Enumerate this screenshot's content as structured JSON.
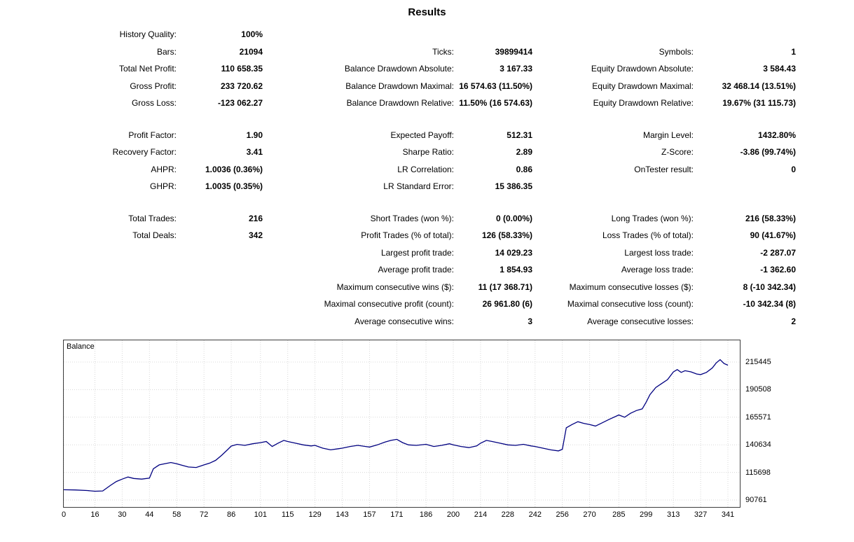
{
  "title": "Results",
  "stats": {
    "sections": [
      {
        "rows": [
          {
            "cells": [
              "History Quality:",
              "100%",
              "",
              "",
              "",
              ""
            ]
          },
          {
            "cells": [
              "Bars:",
              "21094",
              "Ticks:",
              "39899414",
              "Symbols:",
              "1"
            ]
          },
          {
            "cells": [
              "Total Net Profit:",
              "110 658.35",
              "Balance Drawdown Absolute:",
              "3 167.33",
              "Equity Drawdown Absolute:",
              "3 584.43"
            ]
          },
          {
            "cells": [
              "Gross Profit:",
              "233 720.62",
              "Balance Drawdown Maximal:",
              "16 574.63 (11.50%)",
              "Equity Drawdown Maximal:",
              "32 468.14 (13.51%)"
            ]
          },
          {
            "cells": [
              "Gross Loss:",
              "-123 062.27",
              "Balance Drawdown Relative:",
              "11.50% (16 574.63)",
              "Equity Drawdown Relative:",
              "19.67% (31 115.73)"
            ]
          }
        ]
      },
      {
        "rows": [
          {
            "cells": [
              "Profit Factor:",
              "1.90",
              "Expected Payoff:",
              "512.31",
              "Margin Level:",
              "1432.80%"
            ]
          },
          {
            "cells": [
              "Recovery Factor:",
              "3.41",
              "Sharpe Ratio:",
              "2.89",
              "Z-Score:",
              "-3.86 (99.74%)"
            ]
          },
          {
            "cells": [
              "AHPR:",
              "1.0036 (0.36%)",
              "LR Correlation:",
              "0.86",
              "OnTester result:",
              "0"
            ]
          },
          {
            "cells": [
              "GHPR:",
              "1.0035 (0.35%)",
              "LR Standard Error:",
              "15 386.35",
              "",
              ""
            ]
          }
        ]
      },
      {
        "rows": [
          {
            "cells": [
              "Total Trades:",
              "216",
              "Short Trades (won %):",
              "0 (0.00%)",
              "Long Trades (won %):",
              "216 (58.33%)"
            ]
          },
          {
            "cells": [
              "Total Deals:",
              "342",
              "Profit Trades (% of total):",
              "126 (58.33%)",
              "Loss Trades (% of total):",
              "90 (41.67%)"
            ]
          },
          {
            "cells": [
              "",
              "",
              "Largest profit trade:",
              "14 029.23",
              "Largest loss trade:",
              "-2 287.07"
            ]
          },
          {
            "cells": [
              "",
              "",
              "Average profit trade:",
              "1 854.93",
              "Average loss trade:",
              "-1 362.60"
            ]
          },
          {
            "cells": [
              "",
              "",
              "Maximum consecutive wins ($):",
              "11 (17 368.71)",
              "Maximum consecutive losses ($):",
              "8 (-10 342.34)"
            ]
          },
          {
            "cells": [
              "",
              "",
              "Maximal consecutive profit (count):",
              "26 961.80 (6)",
              "Maximal consecutive loss (count):",
              "-10 342.34 (8)"
            ]
          },
          {
            "cells": [
              "",
              "",
              "Average consecutive wins:",
              "3",
              "Average consecutive losses:",
              "2"
            ]
          }
        ]
      }
    ]
  },
  "chart_data": {
    "type": "line",
    "title": "Balance",
    "legend_position": "top-left-inside",
    "grid": true,
    "line_color": "#000080",
    "grid_color": "#d8d8d8",
    "xlim": [
      0,
      341
    ],
    "ylim": [
      90761,
      220000
    ],
    "x_ticks": [
      0,
      16,
      30,
      44,
      58,
      72,
      86,
      101,
      115,
      129,
      143,
      157,
      171,
      186,
      200,
      214,
      228,
      242,
      256,
      270,
      285,
      299,
      313,
      327,
      341
    ],
    "y_ticks": [
      215445,
      190508,
      165571,
      140634,
      115698,
      90761
    ],
    "series": [
      {
        "name": "Balance",
        "x": [
          0,
          6,
          12,
          16,
          20,
          24,
          27,
          30,
          33,
          36,
          40,
          44,
          46,
          49,
          52,
          55,
          58,
          61,
          64,
          68,
          72,
          75,
          78,
          81,
          84,
          86,
          89,
          93,
          97,
          101,
          104,
          107,
          110,
          113,
          115,
          119,
          123,
          127,
          129,
          133,
          137,
          141,
          143,
          147,
          151,
          155,
          157,
          161,
          165,
          168,
          171,
          174,
          177,
          181,
          186,
          190,
          194,
          198,
          200,
          204,
          208,
          212,
          214,
          217,
          220,
          224,
          228,
          232,
          236,
          240,
          242,
          246,
          250,
          254,
          256,
          258,
          261,
          264,
          267,
          270,
          273,
          276,
          280,
          285,
          288,
          291,
          294,
          297,
          299,
          301,
          304,
          307,
          310,
          313,
          315,
          317,
          319,
          322,
          325,
          327,
          330,
          333,
          335,
          337,
          339,
          341
        ],
        "y": [
          100000,
          99800,
          99300,
          98700,
          98900,
          104000,
          107500,
          109600,
          111500,
          110200,
          109600,
          110500,
          119000,
          122500,
          123600,
          124600,
          123500,
          122000,
          120600,
          120100,
          122500,
          124100,
          126600,
          131000,
          136000,
          139500,
          141000,
          140100,
          141600,
          142600,
          143600,
          139100,
          142100,
          144600,
          143600,
          142100,
          140600,
          139600,
          140100,
          137600,
          136100,
          137100,
          137600,
          139100,
          140100,
          139100,
          138600,
          140600,
          143100,
          144600,
          145600,
          142600,
          140600,
          140100,
          141100,
          139100,
          140100,
          141600,
          140600,
          139100,
          138100,
          139600,
          142100,
          144600,
          143600,
          142100,
          140600,
          140100,
          141100,
          139600,
          139100,
          137600,
          136100,
          135100,
          136600,
          156000,
          159000,
          161500,
          160000,
          159000,
          157600,
          160100,
          163600,
          167600,
          165600,
          169100,
          171600,
          173100,
          179000,
          186000,
          192500,
          196000,
          199500,
          206500,
          208600,
          206100,
          207600,
          206600,
          204600,
          204100,
          206100,
          210100,
          214600,
          217600,
          214100,
          212600
        ]
      }
    ]
  }
}
